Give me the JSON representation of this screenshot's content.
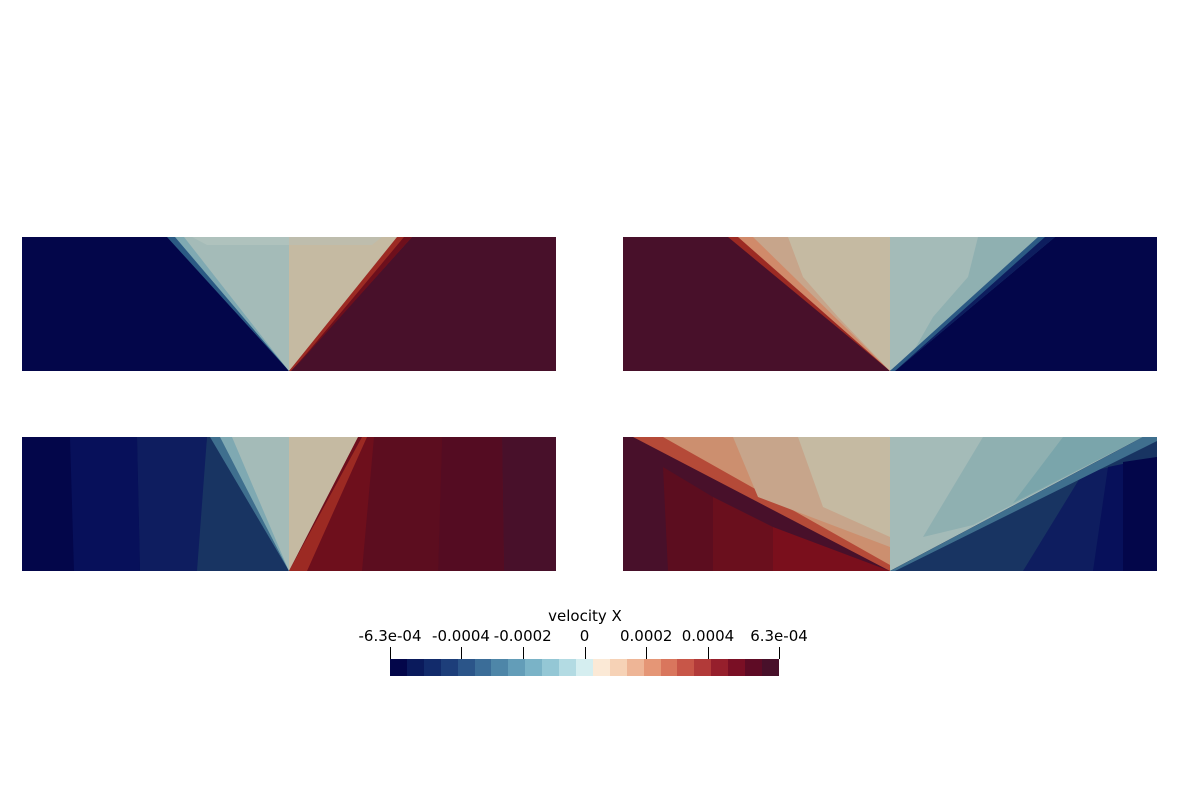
{
  "colorbar": {
    "title": "velocity X",
    "ticks": [
      {
        "label": "-6.3e-04",
        "value": -0.00063
      },
      {
        "label": "-0.0004",
        "value": -0.0004
      },
      {
        "label": "-0.0002",
        "value": -0.0002
      },
      {
        "label": "0",
        "value": 0
      },
      {
        "label": "0.0002",
        "value": 0.0002
      },
      {
        "label": "0.0004",
        "value": 0.0004
      },
      {
        "label": "6.3e-04",
        "value": 0.00063
      }
    ],
    "range": [
      -0.00063,
      0.00063
    ],
    "colors": [
      "#03064a",
      "#0a1a5c",
      "#122b6b",
      "#1d3e7a",
      "#2b5589",
      "#3b6d98",
      "#4e86a8",
      "#639db8",
      "#7ab3c7",
      "#94c7d5",
      "#b3dbe3",
      "#d5eef0",
      "#fbe9d6",
      "#f6d2b6",
      "#eeb596",
      "#e59676",
      "#d9765d",
      "#c85648",
      "#b23a39",
      "#961f2c",
      "#7a0f25",
      "#5e0b25",
      "#48102a"
    ]
  },
  "colors": {
    "deep_negative": "#03064a",
    "deep_positive": "#48102a",
    "near_zero_blue": "#a4bbb8",
    "near_zero_tan": "#c5baa2"
  }
}
